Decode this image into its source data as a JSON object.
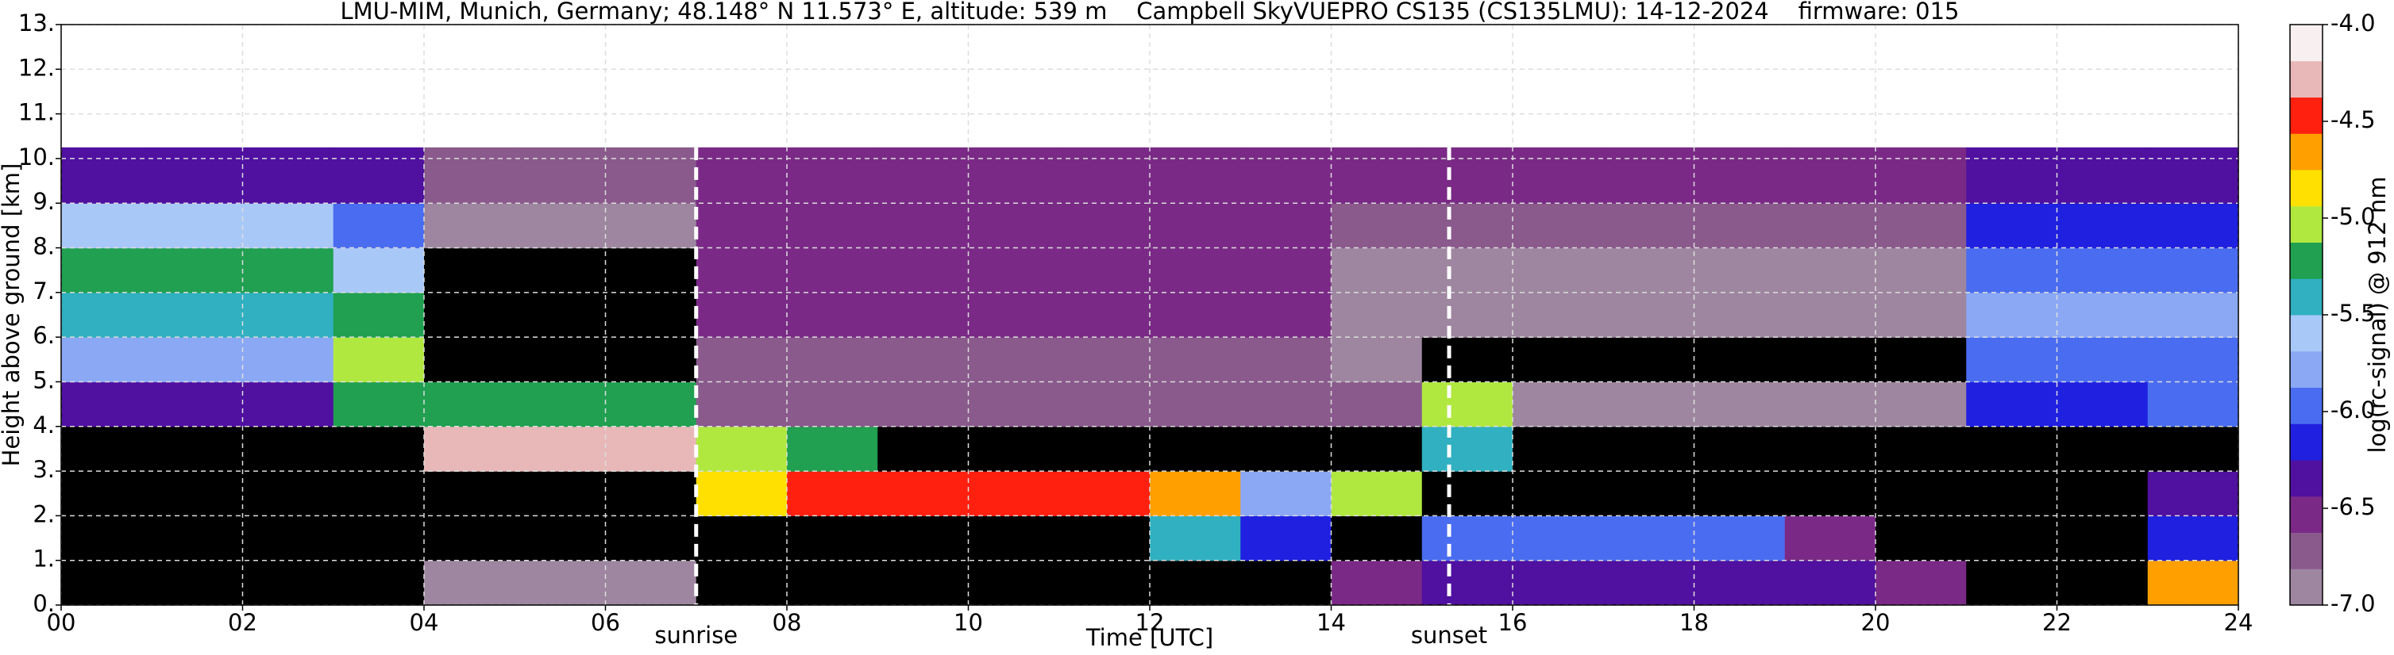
{
  "chart_data": {
    "type": "heatmap",
    "title": "LMU-MIM, Munich, Germany; 48.148° N 11.573° E, altitude: 539 m    Campbell SkyVUEPRO CS135 (CS135LMU): 14-12-2024    firmware: 015",
    "x_label": "Time [UTC]",
    "y_label": "Height above ground [km]",
    "colorbar_label": "log(rc-signal) @ 912 nm",
    "xlim": [
      0,
      24
    ],
    "xticks": [
      {
        "value": 0,
        "label": "00"
      },
      {
        "value": 2,
        "label": "02"
      },
      {
        "value": 4,
        "label": "04"
      },
      {
        "value": 6,
        "label": "06"
      },
      {
        "value": 8,
        "label": "08"
      },
      10,
      12,
      14,
      16,
      18,
      20,
      22,
      24
    ],
    "ylim": [
      0,
      13
    ],
    "yticks": [
      {
        "value": 0,
        "label": "0."
      },
      {
        "value": 1,
        "label": "1."
      },
      {
        "value": 2,
        "label": "2."
      },
      {
        "value": 3,
        "label": "3."
      },
      {
        "value": 4,
        "label": "4."
      },
      {
        "value": 5,
        "label": "5."
      },
      {
        "value": 6,
        "label": "6."
      },
      {
        "value": 7,
        "label": "7."
      },
      {
        "value": 8,
        "label": "8."
      },
      {
        "value": 9,
        "label": "9."
      },
      {
        "value": 10,
        "label": "10."
      },
      {
        "value": 11,
        "label": "11."
      },
      {
        "value": 12,
        "label": "12."
      },
      {
        "value": 13,
        "label": "13."
      }
    ],
    "clim": [
      -7,
      -4
    ],
    "cticks": [
      {
        "value": -7,
        "label": "-7.0"
      },
      {
        "value": -6.5,
        "label": "-6.5"
      },
      {
        "value": -6,
        "label": "-6.0"
      },
      {
        "value": -5.5,
        "label": "-5.5"
      },
      {
        "value": -5,
        "label": "-5.0"
      },
      {
        "value": -4.5,
        "label": "-4.5"
      },
      {
        "value": -4,
        "label": "-4.0"
      }
    ],
    "colors": [
      "#9e86a0",
      "#8a5a8c",
      "#7a2a86",
      "#5010a0",
      "#2020e0",
      "#4a6cf0",
      "#8aa8f4",
      "#a8c8f8",
      "#30b0c0",
      "#20a050",
      "#b0e840",
      "#ffe000",
      "#ffa000",
      "#ff2010",
      "#e8b8b8",
      "#f8f0f0"
    ],
    "under_color": "#000000",
    "grid": true,
    "x_edges": [
      0,
      1,
      2,
      3,
      4,
      5,
      6,
      7,
      8,
      9,
      10,
      11,
      12,
      13,
      14,
      15,
      16,
      17,
      18,
      19,
      20,
      21,
      22,
      23,
      24
    ],
    "y_edges": [
      0,
      1,
      2,
      3,
      4,
      5,
      6,
      7,
      8,
      9,
      10.25
    ],
    "z": [
      [
        -7.2,
        -7.2,
        -7.2,
        -7.2,
        -6.9,
        -6.9,
        -6.9,
        -7.2,
        -7.2,
        -7.2,
        -7.2,
        -7.2,
        -7.2,
        -7.2,
        -6.5,
        -6.3,
        -6.3,
        -6.3,
        -6.3,
        -6.3,
        -6.6,
        -7.2,
        -7.2,
        -4.7
      ],
      [
        -7.3,
        -7.3,
        -7.3,
        -7.3,
        -7.3,
        -7.3,
        -7.3,
        -7.3,
        -7.3,
        -7.3,
        -7.3,
        -7.3,
        -5.5,
        -6.2,
        -7.2,
        -6.0,
        -6.0,
        -6.0,
        -6.0,
        -6.5,
        -7.3,
        -7.3,
        -7.3,
        -6.2
      ],
      [
        -7.3,
        -7.3,
        -7.3,
        -7.3,
        -7.3,
        -7.3,
        -7.3,
        -4.8,
        -4.5,
        -4.5,
        -4.5,
        -4.5,
        -4.7,
        -5.8,
        -5.0,
        -7.3,
        -7.3,
        -7.3,
        -7.3,
        -7.3,
        -7.3,
        -7.3,
        -7.3,
        -6.3
      ],
      [
        -7.3,
        -7.3,
        -7.3,
        -7.3,
        -4.3,
        -4.3,
        -4.3,
        -5.0,
        -5.3,
        -7.2,
        -7.2,
        -7.2,
        -7.2,
        -7.2,
        -7.2,
        -5.5,
        -7.2,
        -7.2,
        -7.2,
        -7.2,
        -7.2,
        -7.2,
        -7.2,
        -7.2
      ],
      [
        -6.4,
        -6.4,
        -6.4,
        -5.2,
        -5.3,
        -5.3,
        -5.3,
        -6.8,
        -6.8,
        -6.8,
        -6.8,
        -6.8,
        -6.8,
        -6.8,
        -6.8,
        -5.0,
        -7.0,
        -7.0,
        -7.0,
        -7.0,
        -7.0,
        -6.2,
        -6.2,
        -6.0
      ],
      [
        -5.8,
        -5.8,
        -5.8,
        -5.0,
        -7.3,
        -7.3,
        -7.3,
        -6.7,
        -6.7,
        -6.7,
        -6.7,
        -6.7,
        -6.7,
        -6.7,
        -7.0,
        -7.1,
        -7.1,
        -7.1,
        -7.1,
        -7.1,
        -7.1,
        -5.9,
        -5.9,
        -5.9
      ],
      [
        -5.4,
        -5.4,
        -5.4,
        -5.2,
        -7.3,
        -7.3,
        -7.3,
        -6.6,
        -6.6,
        -6.6,
        -6.6,
        -6.6,
        -6.6,
        -6.6,
        -7.0,
        -7.0,
        -7.0,
        -7.0,
        -7.0,
        -7.0,
        -7.0,
        -5.8,
        -5.8,
        -5.8
      ],
      [
        -5.3,
        -5.3,
        -5.3,
        -5.6,
        -7.2,
        -7.2,
        -7.2,
        -6.6,
        -6.6,
        -6.6,
        -6.6,
        -6.6,
        -6.6,
        -6.6,
        -6.9,
        -6.9,
        -6.9,
        -6.9,
        -6.9,
        -6.9,
        -6.9,
        -5.9,
        -5.9,
        -5.9
      ],
      [
        -5.6,
        -5.6,
        -5.6,
        -6.0,
        -7.0,
        -7.0,
        -7.0,
        -6.6,
        -6.6,
        -6.6,
        -6.6,
        -6.6,
        -6.6,
        -6.6,
        -6.8,
        -6.8,
        -6.8,
        -6.8,
        -6.8,
        -6.8,
        -6.8,
        -6.2,
        -6.2,
        -6.2
      ],
      [
        -6.3,
        -6.3,
        -6.3,
        -6.3,
        -6.7,
        -6.7,
        -6.7,
        -6.5,
        -6.5,
        -6.5,
        -6.5,
        -6.5,
        -6.5,
        -6.5,
        -6.6,
        -6.6,
        -6.6,
        -6.6,
        -6.6,
        -6.6,
        -6.6,
        -6.4,
        -6.4,
        -6.4
      ]
    ],
    "annotations": [
      {
        "text": "sunrise",
        "x": 7.0
      },
      {
        "text": "sunset",
        "x": 15.3
      }
    ]
  }
}
